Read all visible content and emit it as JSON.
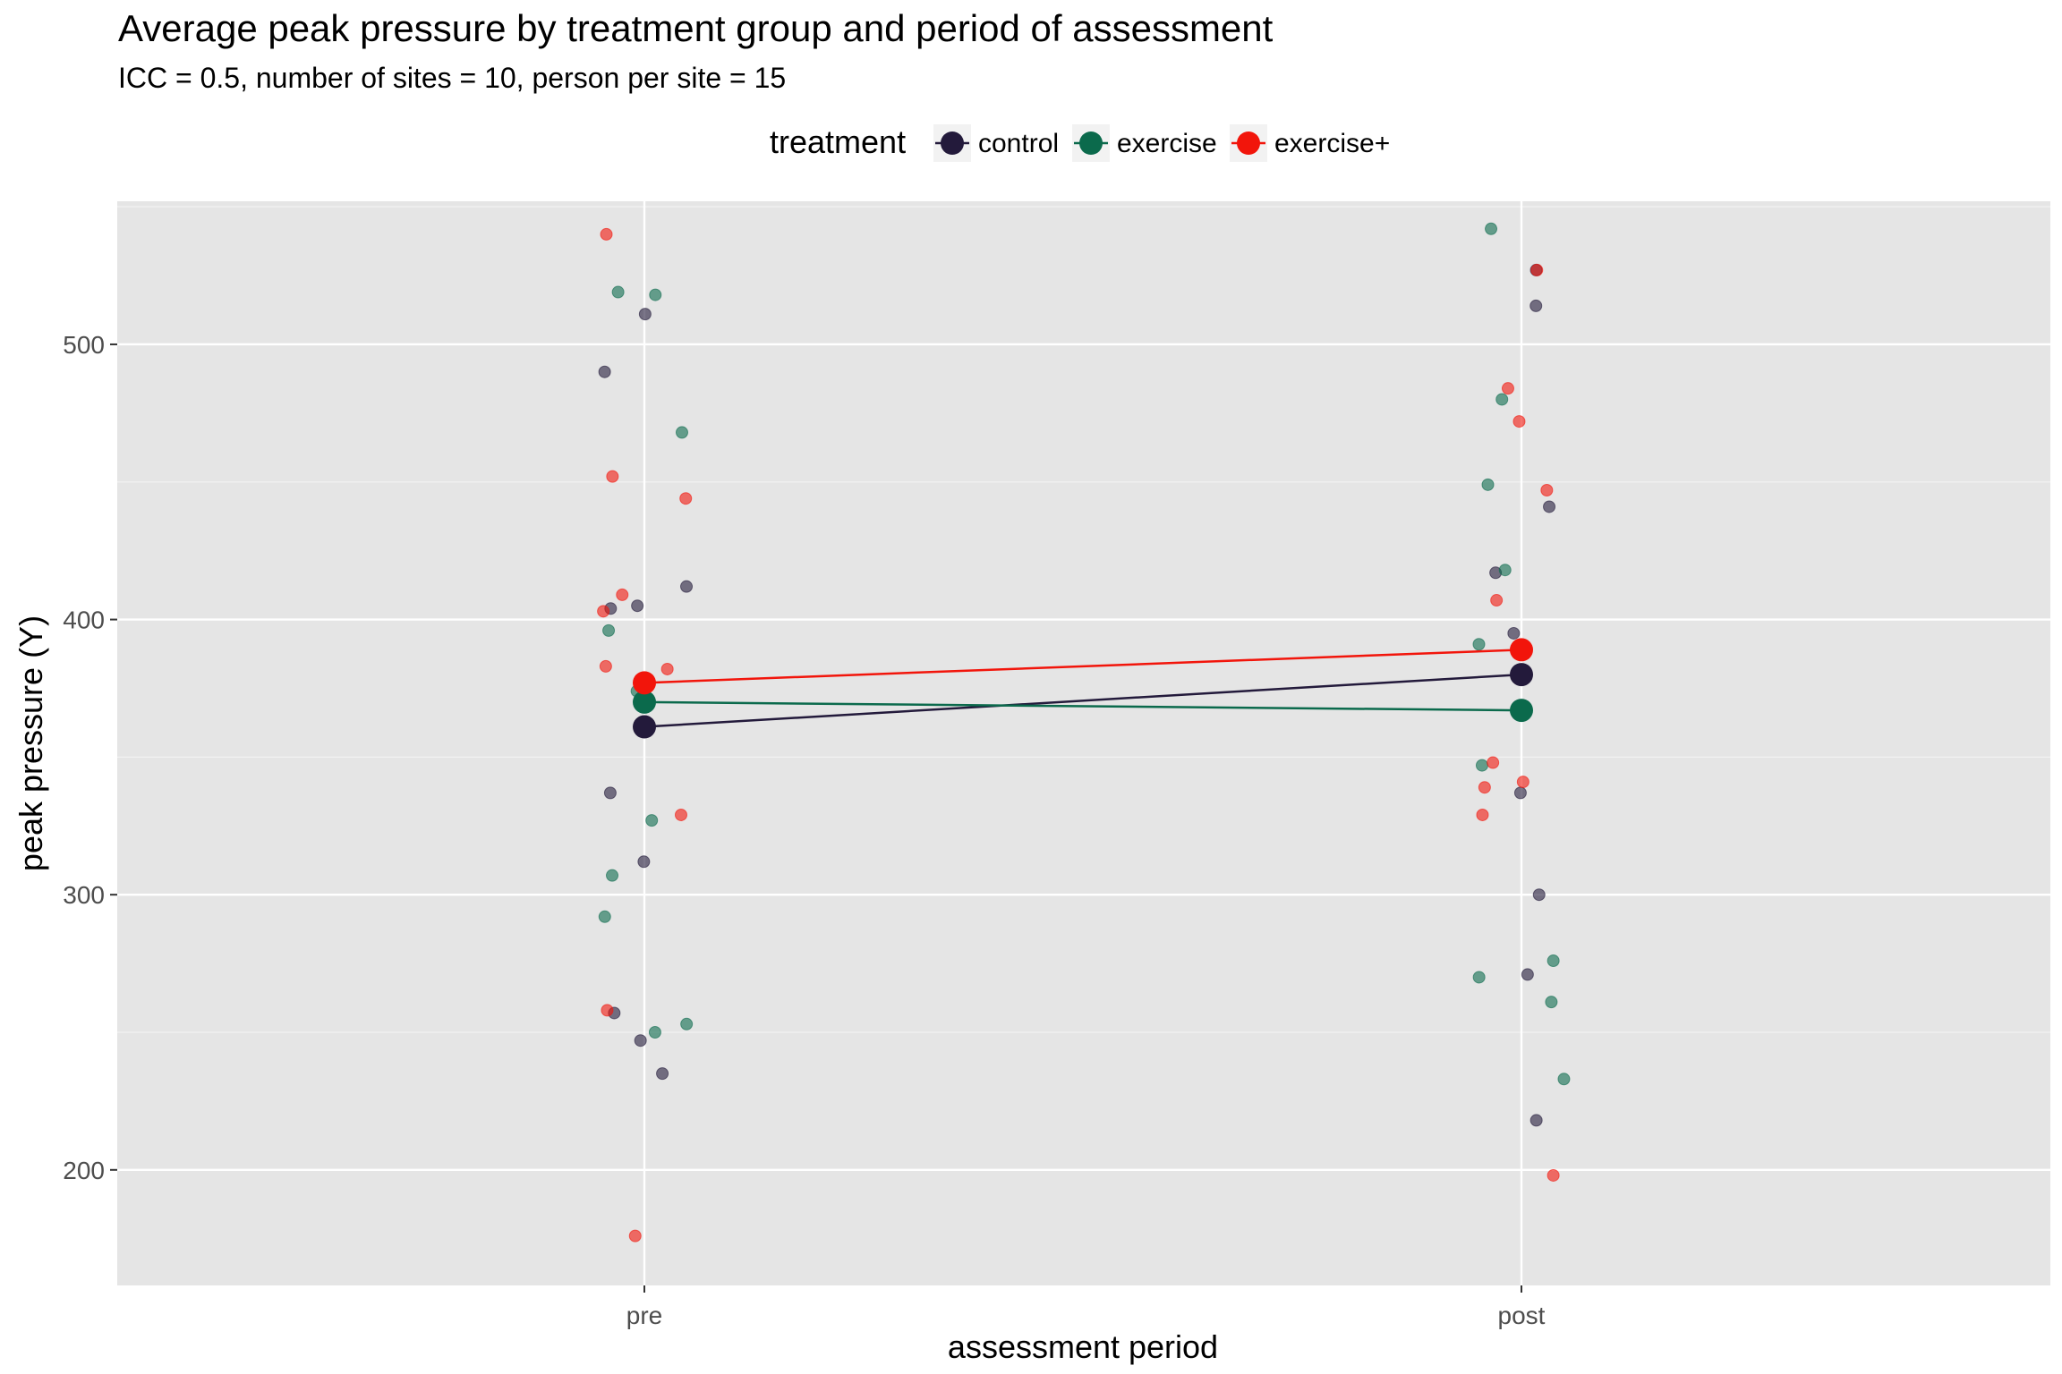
{
  "chart_data": {
    "type": "scatter",
    "title": "Average peak pressure by treatment group and period of assessment",
    "subtitle": "ICC = 0.5, number of sites = 10, person per site = 15",
    "xlabel": "assessment period",
    "ylabel": "peak pressure (Y)",
    "categories": [
      "pre",
      "post"
    ],
    "ylim": [
      158,
      552
    ],
    "yticks": [
      200,
      300,
      400,
      500
    ],
    "grid": true,
    "legend": {
      "title": "treatment",
      "position": "top"
    },
    "series": [
      {
        "name": "control",
        "color": "#231a3b",
        "mean": [
          361,
          380
        ],
        "points": [
          {
            "x": "pre",
            "y": 511
          },
          {
            "x": "pre",
            "y": 490
          },
          {
            "x": "pre",
            "y": 412
          },
          {
            "x": "pre",
            "y": 405
          },
          {
            "x": "pre",
            "y": 404
          },
          {
            "x": "pre",
            "y": 337
          },
          {
            "x": "pre",
            "y": 312
          },
          {
            "x": "pre",
            "y": 257
          },
          {
            "x": "pre",
            "y": 247
          },
          {
            "x": "pre",
            "y": 235
          },
          {
            "x": "post",
            "y": 527
          },
          {
            "x": "post",
            "y": 514
          },
          {
            "x": "post",
            "y": 441
          },
          {
            "x": "post",
            "y": 417
          },
          {
            "x": "post",
            "y": 395
          },
          {
            "x": "post",
            "y": 337
          },
          {
            "x": "post",
            "y": 300
          },
          {
            "x": "post",
            "y": 271
          },
          {
            "x": "post",
            "y": 218
          }
        ]
      },
      {
        "name": "exercise",
        "color": "#0b6a4c",
        "mean": [
          370,
          367
        ],
        "points": [
          {
            "x": "pre",
            "y": 519
          },
          {
            "x": "pre",
            "y": 518
          },
          {
            "x": "pre",
            "y": 468
          },
          {
            "x": "pre",
            "y": 396
          },
          {
            "x": "pre",
            "y": 374
          },
          {
            "x": "pre",
            "y": 327
          },
          {
            "x": "pre",
            "y": 307
          },
          {
            "x": "pre",
            "y": 292
          },
          {
            "x": "pre",
            "y": 253
          },
          {
            "x": "pre",
            "y": 250
          },
          {
            "x": "post",
            "y": 542
          },
          {
            "x": "post",
            "y": 480
          },
          {
            "x": "post",
            "y": 449
          },
          {
            "x": "post",
            "y": 418
          },
          {
            "x": "post",
            "y": 391
          },
          {
            "x": "post",
            "y": 347
          },
          {
            "x": "post",
            "y": 276
          },
          {
            "x": "post",
            "y": 270
          },
          {
            "x": "post",
            "y": 261
          },
          {
            "x": "post",
            "y": 233
          }
        ]
      },
      {
        "name": "exercise+",
        "color": "#f2150b",
        "mean": [
          377,
          389
        ],
        "points": [
          {
            "x": "pre",
            "y": 540
          },
          {
            "x": "pre",
            "y": 452
          },
          {
            "x": "pre",
            "y": 444
          },
          {
            "x": "pre",
            "y": 409
          },
          {
            "x": "pre",
            "y": 403
          },
          {
            "x": "pre",
            "y": 383
          },
          {
            "x": "pre",
            "y": 382
          },
          {
            "x": "pre",
            "y": 329
          },
          {
            "x": "pre",
            "y": 258
          },
          {
            "x": "pre",
            "y": 176
          },
          {
            "x": "post",
            "y": 527
          },
          {
            "x": "post",
            "y": 484
          },
          {
            "x": "post",
            "y": 472
          },
          {
            "x": "post",
            "y": 447
          },
          {
            "x": "post",
            "y": 407
          },
          {
            "x": "post",
            "y": 348
          },
          {
            "x": "post",
            "y": 341
          },
          {
            "x": "post",
            "y": 339
          },
          {
            "x": "post",
            "y": 329
          },
          {
            "x": "post",
            "y": 198
          }
        ]
      }
    ]
  }
}
